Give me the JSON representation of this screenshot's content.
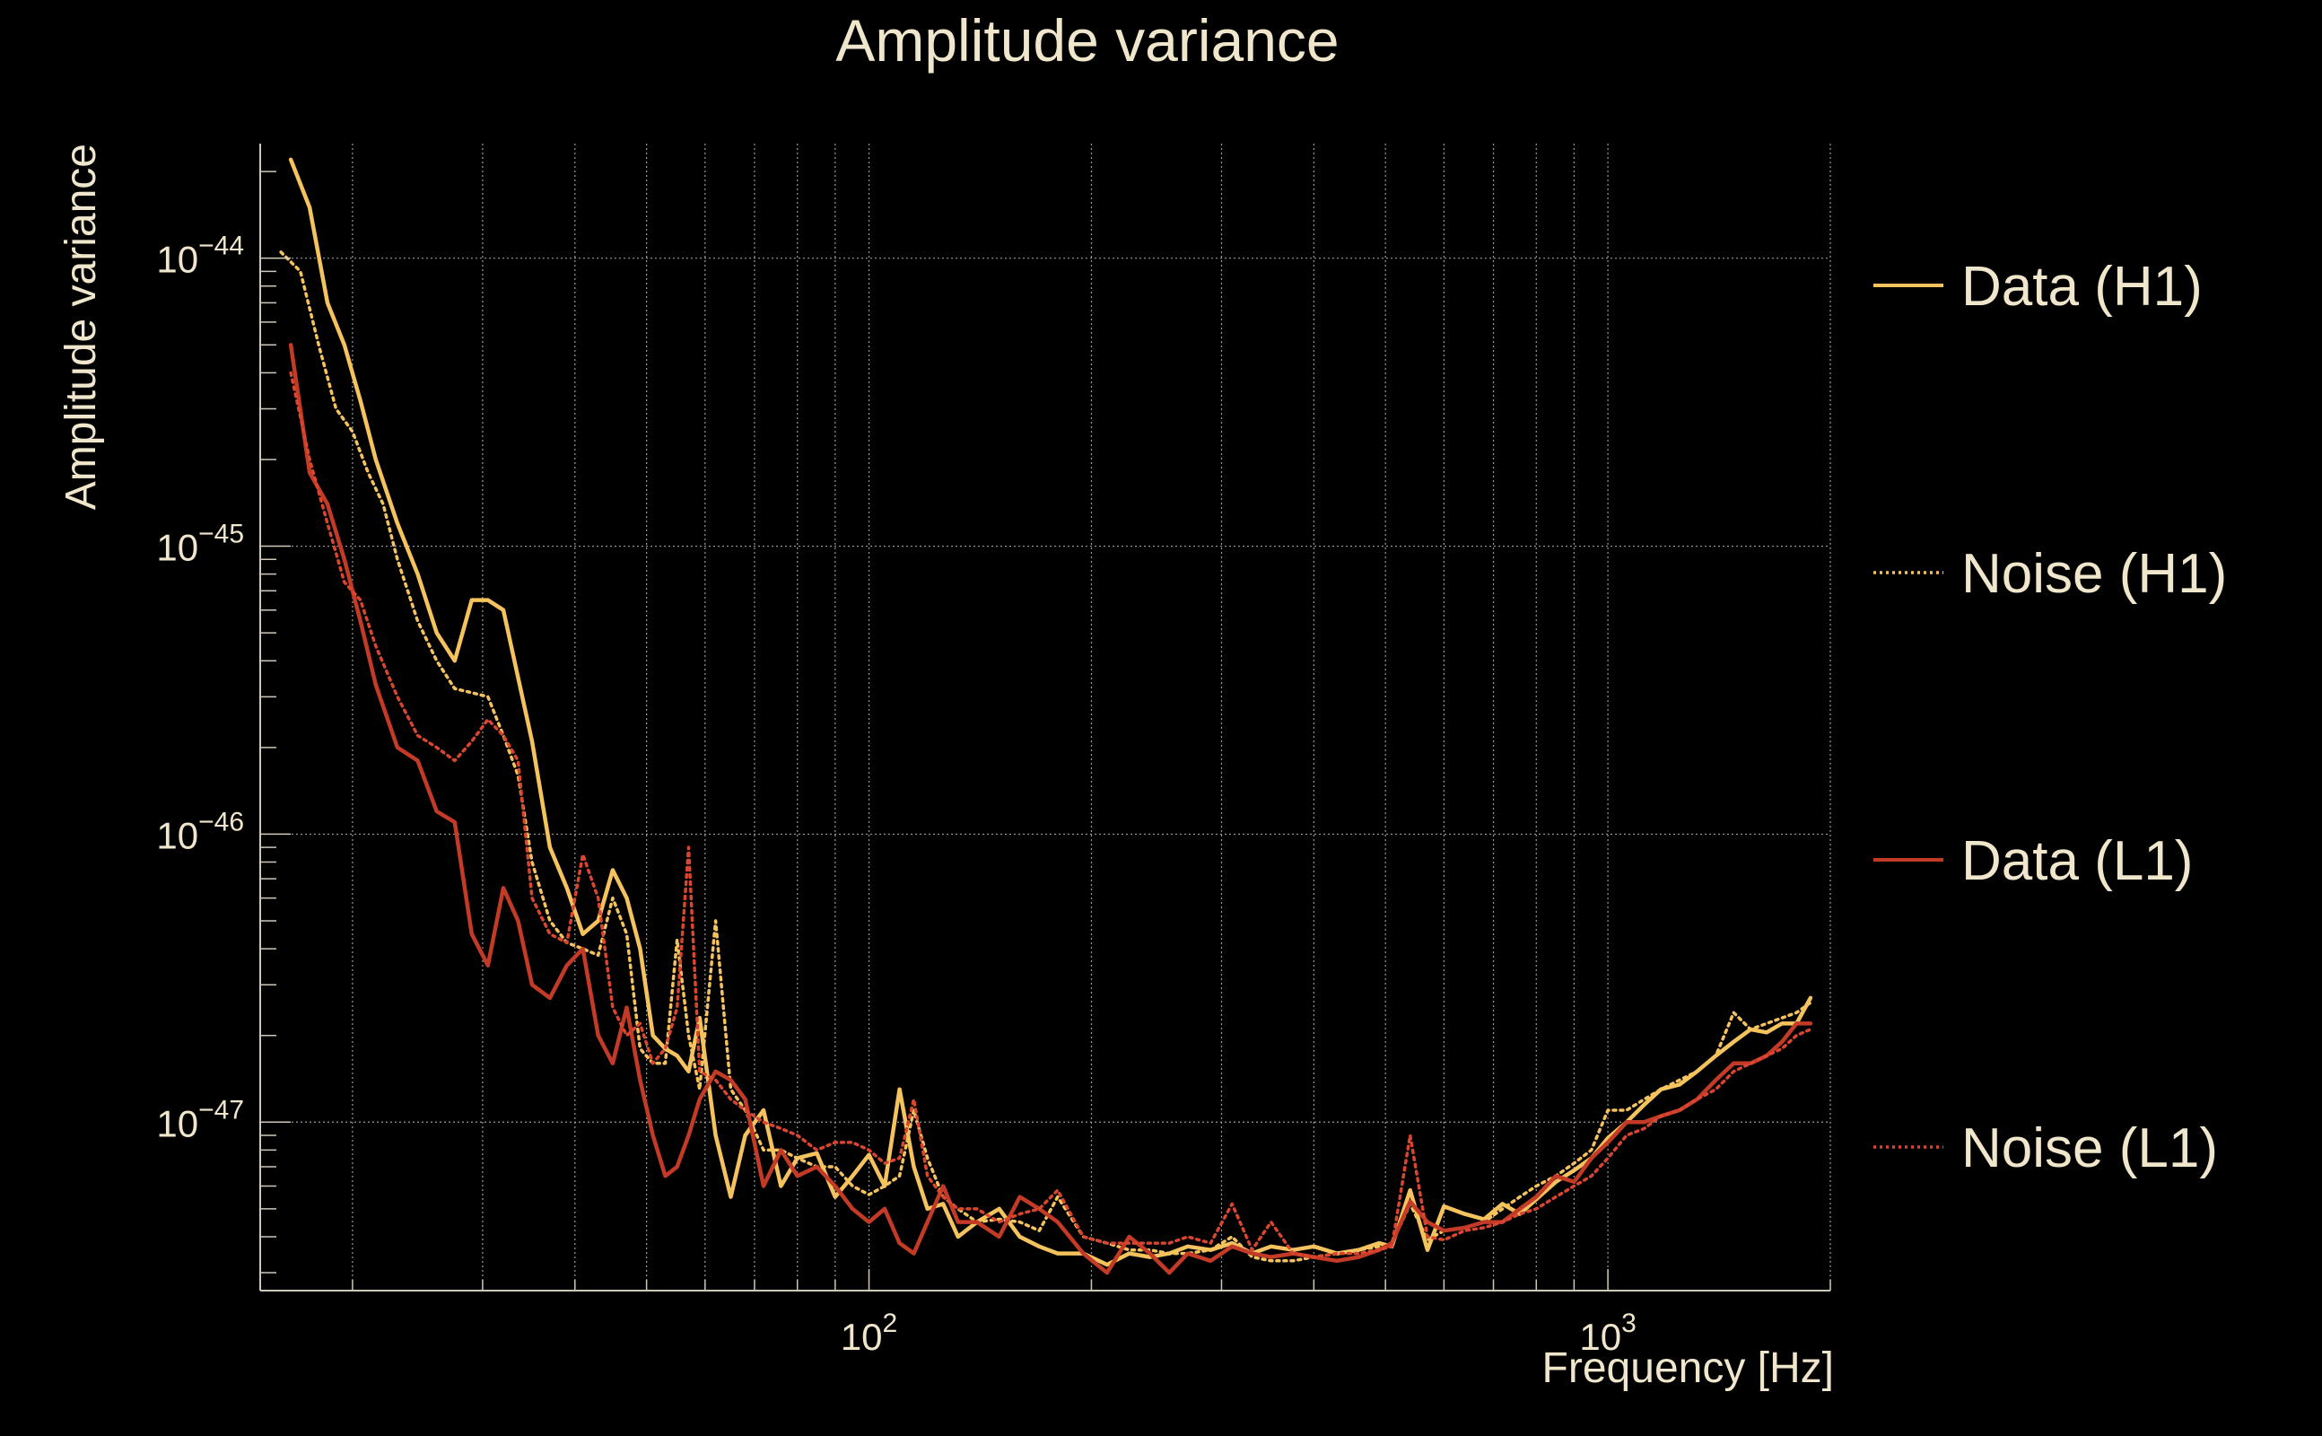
{
  "colors": {
    "background": "#000000",
    "text": "#f0e6cc",
    "axis": "#cfc8b8",
    "grid": "#9a9a9a",
    "h1": "#f5c35e",
    "l1": "#c33a26",
    "noise_l1": "#d8462f"
  },
  "chart_data": {
    "type": "line",
    "title": "Amplitude variance",
    "xlabel": "Frequency [Hz]",
    "ylabel": "Amplitude variance",
    "xscale": "log",
    "yscale": "log",
    "xlim": [
      15,
      2000
    ],
    "ylim": [
      2.6e-48,
      2.5e-44
    ],
    "x_ticks": [
      {
        "value": 100,
        "base": "10",
        "exp": "2"
      },
      {
        "value": 1000,
        "base": "10",
        "exp": "3"
      }
    ],
    "y_ticks": [
      {
        "value": 1e-44,
        "base": "10",
        "exp": "−44"
      },
      {
        "value": 1e-45,
        "base": "10",
        "exp": "−45"
      },
      {
        "value": 1e-46,
        "base": "10",
        "exp": "−46"
      },
      {
        "value": 1e-47,
        "base": "10",
        "exp": "−47"
      }
    ],
    "grid": true,
    "legend_position": "right",
    "series": [
      {
        "name": "Data (H1)",
        "style": "solid",
        "color": "#f5c35e",
        "x": [
          16.5,
          17.5,
          18.5,
          19.5,
          20.5,
          21.5,
          23,
          24.5,
          26,
          27.5,
          29,
          30.5,
          32,
          33.5,
          35,
          37,
          39,
          41,
          43,
          45,
          47,
          49,
          51,
          53,
          55,
          57,
          59,
          62,
          65,
          68,
          72,
          76,
          80,
          85,
          90,
          95,
          100,
          105,
          110,
          115,
          120,
          126,
          132,
          140,
          150,
          160,
          170,
          180,
          195,
          210,
          225,
          240,
          255,
          270,
          290,
          310,
          330,
          350,
          375,
          400,
          430,
          460,
          490,
          510,
          540,
          570,
          600,
          640,
          680,
          720,
          760,
          800,
          850,
          900,
          950,
          1000,
          1060,
          1120,
          1180,
          1250,
          1320,
          1400,
          1480,
          1560,
          1640,
          1720,
          1800,
          1880
        ],
        "y": [
          2.2e-44,
          1.5e-44,
          7e-45,
          5e-45,
          3.2e-45,
          2e-45,
          1.2e-45,
          8e-46,
          5e-46,
          4e-46,
          6.5e-46,
          6.5e-46,
          6e-46,
          3.5e-46,
          2.1e-46,
          9e-47,
          6.5e-47,
          4.5e-47,
          5e-47,
          7.5e-47,
          6e-47,
          4e-47,
          2e-47,
          1.8e-47,
          1.7e-47,
          1.5e-47,
          2.3e-47,
          9e-48,
          5.5e-48,
          9e-48,
          1.1e-47,
          6e-48,
          7.5e-48,
          7.8e-48,
          5.5e-48,
          6.5e-48,
          7.7e-48,
          6e-48,
          1.3e-47,
          7e-48,
          5e-48,
          5.2e-48,
          4e-48,
          4.5e-48,
          5e-48,
          4e-48,
          3.7e-48,
          3.5e-48,
          3.5e-48,
          3.2e-48,
          3.5e-48,
          3.4e-48,
          3.5e-48,
          3.7e-48,
          3.6e-48,
          3.8e-48,
          3.5e-48,
          3.7e-48,
          3.6e-48,
          3.7e-48,
          3.5e-48,
          3.6e-48,
          3.8e-48,
          3.7e-48,
          5.8e-48,
          3.6e-48,
          5.1e-48,
          4.8e-48,
          4.6e-48,
          5.2e-48,
          4.8e-48,
          5.4e-48,
          6.2e-48,
          6.8e-48,
          7.5e-48,
          8.8e-48,
          1e-47,
          1.15e-47,
          1.3e-47,
          1.35e-47,
          1.5e-47,
          1.7e-47,
          1.9e-47,
          2.1e-47,
          2.05e-47,
          2.2e-47,
          2.2e-47,
          2.7e-47
        ]
      },
      {
        "name": "Noise (H1)",
        "style": "dotted",
        "color": "#f5c35e",
        "x": [
          16,
          17,
          18,
          19,
          20,
          21,
          22,
          23,
          24.5,
          26,
          27.5,
          29,
          30.5,
          32,
          33.5,
          35,
          37,
          39,
          41,
          43,
          45,
          47,
          49,
          51,
          53,
          55,
          57,
          59,
          62,
          65,
          68,
          72,
          76,
          80,
          85,
          90,
          95,
          100,
          105,
          110,
          115,
          120,
          126,
          132,
          140,
          150,
          160,
          170,
          180,
          195,
          210,
          225,
          240,
          255,
          270,
          290,
          310,
          330,
          350,
          375,
          400,
          430,
          460,
          490,
          510,
          540,
          570,
          600,
          640,
          680,
          720,
          760,
          800,
          850,
          900,
          950,
          1000,
          1060,
          1120,
          1180,
          1250,
          1320,
          1400,
          1480,
          1560,
          1640,
          1720,
          1800,
          1880
        ],
        "y": [
          1.05e-44,
          9e-45,
          5e-45,
          3e-45,
          2.5e-45,
          1.8e-45,
          1.4e-45,
          9e-46,
          5.5e-46,
          4e-46,
          3.2e-46,
          3.1e-46,
          3e-46,
          2.2e-46,
          1.6e-46,
          8e-47,
          5e-47,
          4.2e-47,
          4e-47,
          3.8e-47,
          6e-47,
          4.5e-47,
          1.8e-47,
          1.6e-47,
          1.6e-47,
          4.3e-47,
          2e-47,
          1.3e-47,
          5e-47,
          1.3e-47,
          1.1e-47,
          8e-48,
          8e-48,
          7.5e-48,
          7e-48,
          7e-48,
          6e-48,
          5.6e-48,
          6e-48,
          6.5e-48,
          1.1e-47,
          7.5e-48,
          5.5e-48,
          5e-48,
          4.5e-48,
          4.6e-48,
          4.5e-48,
          4.2e-48,
          5.5e-48,
          4e-48,
          3.8e-48,
          3.6e-48,
          3.6e-48,
          3.5e-48,
          3.5e-48,
          3.6e-48,
          4e-48,
          3.4e-48,
          3.3e-48,
          3.3e-48,
          3.4e-48,
          3.5e-48,
          3.6e-48,
          3.7e-48,
          3.8e-48,
          5.2e-48,
          3.9e-48,
          4.2e-48,
          4.3e-48,
          4.5e-48,
          5e-48,
          5.5e-48,
          6e-48,
          6.5e-48,
          7.2e-48,
          8e-48,
          1.1e-47,
          1.1e-47,
          1.2e-47,
          1.3e-47,
          1.4e-47,
          1.5e-47,
          1.7e-47,
          2.4e-47,
          2.1e-47,
          2.2e-47,
          2.3e-47,
          2.4e-47,
          2.6e-47
        ]
      },
      {
        "name": "Data (L1)",
        "style": "solid",
        "color": "#c33a26",
        "x": [
          16.5,
          17.5,
          18.5,
          19.5,
          20.5,
          21.5,
          23,
          24.5,
          26,
          27.5,
          29,
          30.5,
          32,
          33.5,
          35,
          37,
          39,
          41,
          43,
          45,
          47,
          49,
          51,
          53,
          55,
          57,
          59,
          62,
          65,
          68,
          72,
          76,
          80,
          85,
          90,
          95,
          100,
          105,
          110,
          115,
          120,
          126,
          132,
          140,
          150,
          160,
          170,
          180,
          195,
          210,
          225,
          240,
          255,
          270,
          290,
          310,
          330,
          350,
          375,
          400,
          430,
          460,
          490,
          510,
          540,
          570,
          600,
          640,
          680,
          720,
          760,
          800,
          850,
          900,
          950,
          1000,
          1060,
          1120,
          1180,
          1250,
          1320,
          1400,
          1480,
          1560,
          1640,
          1720,
          1800,
          1880
        ],
        "y": [
          5e-45,
          1.8e-45,
          1.4e-45,
          9e-46,
          5.5e-46,
          3.3e-46,
          2e-46,
          1.8e-46,
          1.2e-46,
          1.1e-46,
          4.5e-47,
          3.5e-47,
          6.5e-47,
          5e-47,
          3e-47,
          2.7e-47,
          3.5e-47,
          4e-47,
          2e-47,
          1.6e-47,
          2.5e-47,
          1.4e-47,
          9e-48,
          6.5e-48,
          7e-48,
          9e-48,
          1.2e-47,
          1.5e-47,
          1.4e-47,
          1.2e-47,
          6e-48,
          8e-48,
          6.5e-48,
          7e-48,
          6e-48,
          5e-48,
          4.5e-48,
          5e-48,
          3.8e-48,
          3.5e-48,
          4.5e-48,
          6e-48,
          4.5e-48,
          4.5e-48,
          4e-48,
          5.5e-48,
          5e-48,
          4.5e-48,
          3.5e-48,
          3e-48,
          4e-48,
          3.5e-48,
          3e-48,
          3.5e-48,
          3.3e-48,
          3.7e-48,
          3.5e-48,
          3.4e-48,
          3.5e-48,
          3.4e-48,
          3.3e-48,
          3.4e-48,
          3.6e-48,
          3.8e-48,
          5.3e-48,
          4.5e-48,
          4.2e-48,
          4.3e-48,
          4.5e-48,
          4.5e-48,
          5e-48,
          5.5e-48,
          6.5e-48,
          6.2e-48,
          7.5e-48,
          8.5e-48,
          1e-47,
          1e-47,
          1.05e-47,
          1.1e-47,
          1.2e-47,
          1.4e-47,
          1.6e-47,
          1.6e-47,
          1.7e-47,
          1.9e-47,
          2.2e-47,
          2.2e-47
        ]
      },
      {
        "name": "Noise (L1)",
        "style": "dotted",
        "color": "#d8462f",
        "x": [
          16.5,
          17.5,
          18.5,
          19.5,
          20.5,
          21.5,
          23,
          24.5,
          26,
          27.5,
          29,
          30.5,
          32,
          33.5,
          35,
          37,
          39,
          41,
          43,
          45,
          47,
          49,
          51,
          53,
          55,
          57,
          59,
          62,
          65,
          68,
          72,
          76,
          80,
          85,
          90,
          95,
          100,
          105,
          110,
          115,
          120,
          126,
          132,
          140,
          150,
          160,
          170,
          180,
          195,
          210,
          225,
          240,
          255,
          270,
          290,
          310,
          330,
          350,
          375,
          400,
          430,
          460,
          490,
          510,
          540,
          570,
          600,
          640,
          680,
          720,
          760,
          800,
          850,
          900,
          950,
          1000,
          1060,
          1120,
          1180,
          1250,
          1320,
          1400,
          1480,
          1560,
          1640,
          1720,
          1800,
          1880
        ],
        "y": [
          4e-45,
          2e-45,
          1.2e-45,
          7.5e-46,
          6.5e-46,
          4.5e-46,
          3e-46,
          2.2e-46,
          2e-46,
          1.8e-46,
          2.1e-46,
          2.5e-46,
          2.2e-46,
          1.8e-46,
          6e-47,
          4.5e-47,
          4.2e-47,
          8.5e-47,
          6e-47,
          2.5e-47,
          2e-47,
          2.2e-47,
          1.6e-47,
          1.8e-47,
          2.5e-47,
          9e-47,
          1.5e-47,
          1.4e-47,
          1.2e-47,
          1.1e-47,
          1e-47,
          9.5e-48,
          9e-48,
          8e-48,
          8.5e-48,
          8.5e-48,
          8e-48,
          7.2e-48,
          7.5e-48,
          1.2e-47,
          6.5e-48,
          5.5e-48,
          5e-48,
          5e-48,
          4.5e-48,
          4.8e-48,
          5e-48,
          5.8e-48,
          4e-48,
          3.8e-48,
          3.8e-48,
          3.8e-48,
          3.8e-48,
          4e-48,
          3.8e-48,
          5.2e-48,
          3.6e-48,
          4.5e-48,
          3.5e-48,
          3.4e-48,
          3.5e-48,
          3.5e-48,
          3.6e-48,
          3.7e-48,
          9e-48,
          4e-48,
          3.9e-48,
          4.2e-48,
          4.3e-48,
          4.5e-48,
          4.8e-48,
          5e-48,
          5.5e-48,
          6e-48,
          6.5e-48,
          7.5e-48,
          9e-48,
          9.5e-48,
          1.05e-47,
          1.1e-47,
          1.2e-47,
          1.3e-47,
          1.5e-47,
          1.6e-47,
          1.7e-47,
          1.8e-47,
          2e-47,
          2.1e-47
        ]
      }
    ]
  }
}
